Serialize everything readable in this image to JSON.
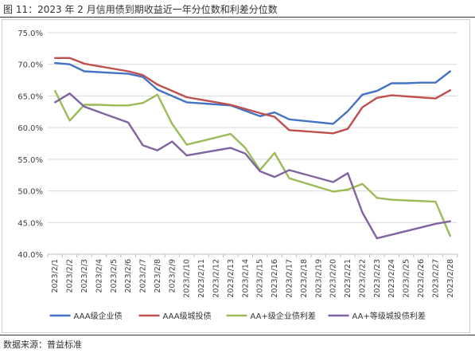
{
  "header": {
    "title": "图 11：2023 年 2 月信用债到期收益近一年分位数和利差分位数"
  },
  "footer": {
    "source": "数据来源：普益标准"
  },
  "colors": {
    "s1": "#4472C4",
    "s2": "#C0504D",
    "s3": "#9BBB59",
    "s4": "#8064A2",
    "grid": "#d9d9d9",
    "axis": "#bfbfbf"
  },
  "chart_data": {
    "type": "line",
    "categories": [
      "2023/2/1",
      "2023/2/2",
      "2023/2/3",
      "2023/2/4",
      "2023/2/5",
      "2023/2/6",
      "2023/2/7",
      "2023/2/8",
      "2023/2/9",
      "2023/2/10",
      "2023/2/11",
      "2023/2/12",
      "2023/2/13",
      "2023/2/14",
      "2023/2/15",
      "2023/2/16",
      "2023/2/17",
      "2023/2/18",
      "2023/2/19",
      "2023/2/20",
      "2023/2/21",
      "2023/2/22",
      "2023/2/23",
      "2023/2/24",
      "2023/2/25",
      "2023/2/26",
      "2023/2/27",
      "2023/2/28"
    ],
    "ylim": [
      40,
      75
    ],
    "yticks": [
      40,
      45,
      50,
      55,
      60,
      65,
      70,
      75
    ],
    "ytick_labels": [
      "40.0%",
      "45.0%",
      "50.0%",
      "55.0%",
      "60.0%",
      "65.0%",
      "70.0%",
      "75.0%"
    ],
    "grid": true,
    "legend": "bottom",
    "series": [
      {
        "name": "AAA级企业债",
        "color": "#4472C4",
        "values": [
          70.2,
          70.0,
          68.9,
          null,
          null,
          68.5,
          68.0,
          66.0,
          null,
          64.0,
          null,
          null,
          63.5,
          null,
          61.8,
          62.4,
          61.3,
          null,
          null,
          60.6,
          62.6,
          65.2,
          65.8,
          67.0,
          67.0,
          67.1,
          67.1,
          68.9
        ]
      },
      {
        "name": "AAA级城投债",
        "color": "#C0504D",
        "values": [
          71.0,
          71.0,
          70.1,
          null,
          null,
          68.9,
          68.3,
          66.8,
          null,
          64.8,
          null,
          null,
          63.6,
          null,
          62.3,
          61.7,
          59.6,
          null,
          null,
          59.1,
          59.8,
          63.2,
          64.7,
          65.1,
          null,
          null,
          64.6,
          65.9
        ]
      },
      {
        "name": "AA+级企业债利差",
        "color": "#9BBB59",
        "values": [
          65.8,
          61.1,
          63.6,
          63.6,
          63.5,
          63.5,
          63.9,
          65.2,
          60.6,
          57.3,
          null,
          null,
          59.0,
          56.8,
          53.3,
          56.0,
          52.0,
          null,
          null,
          49.9,
          50.2,
          51.1,
          48.9,
          48.6,
          null,
          null,
          48.3,
          42.9
        ]
      },
      {
        "name": "AA+等级城投债利差",
        "color": "#8064A2",
        "values": [
          64.0,
          65.4,
          63.3,
          null,
          null,
          60.8,
          57.2,
          56.4,
          57.8,
          55.6,
          null,
          null,
          56.8,
          55.9,
          53.1,
          52.2,
          53.3,
          null,
          null,
          51.4,
          52.8,
          46.6,
          42.5,
          null,
          null,
          null,
          44.8,
          45.2
        ]
      }
    ]
  }
}
